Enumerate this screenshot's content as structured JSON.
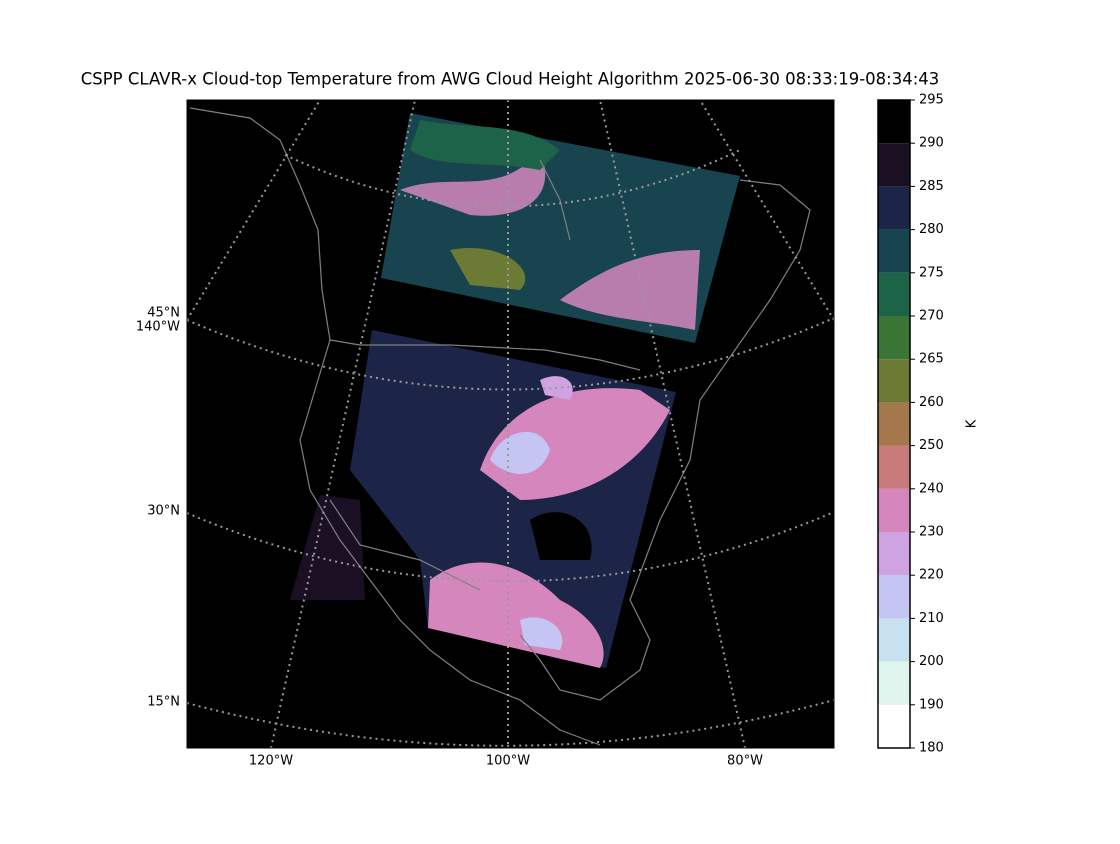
{
  "title": "CSPP CLAVR-x Cloud-top Temperature from AWG Cloud Height Algorithm 2025-06-30 08:33:19-08:34:43",
  "map": {
    "lat_labels": [
      "45°N",
      "30°N",
      "15°N"
    ],
    "lon_labels_left": [
      "140°W"
    ],
    "lon_labels_bottom": [
      "120°W",
      "100°W",
      "80°W"
    ]
  },
  "colorbar": {
    "label": "K",
    "ticks": [
      180,
      190,
      200,
      210,
      220,
      230,
      240,
      250,
      260,
      265,
      270,
      275,
      280,
      285,
      290,
      295
    ],
    "colors": [
      "#ffffff",
      "#e0f4ee",
      "#c7e1f0",
      "#c4c5f3",
      "#cfa2e2",
      "#d587bd",
      "#c97a7a",
      "#a4784c",
      "#6b7b36",
      "#3a7535",
      "#1d6347",
      "#17444f",
      "#1c2447",
      "#1b0f24",
      "#000000"
    ]
  }
}
